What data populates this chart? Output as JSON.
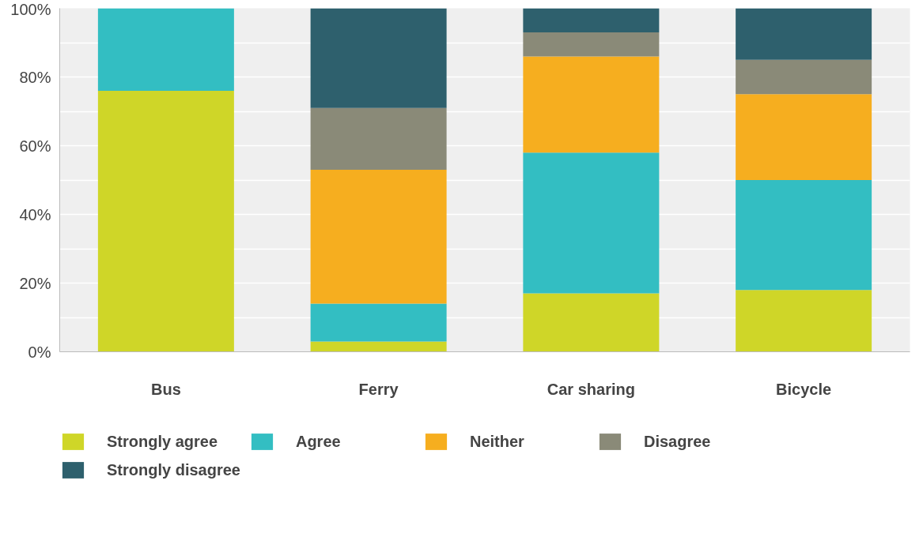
{
  "chart_data": {
    "type": "bar",
    "stacked": true,
    "categories": [
      "Bus",
      "Ferry",
      "Car sharing",
      "Bicycle"
    ],
    "series": [
      {
        "name": "Strongly agree",
        "color": "#cfd628",
        "values": [
          76,
          3,
          17,
          18
        ]
      },
      {
        "name": "Agree",
        "color": "#33bec2",
        "values": [
          24,
          11,
          41,
          32
        ]
      },
      {
        "name": "Neither",
        "color": "#f6ae1f",
        "values": [
          0,
          39,
          28,
          25
        ]
      },
      {
        "name": "Disagree",
        "color": "#8a8a78",
        "values": [
          0,
          18,
          7,
          10
        ]
      },
      {
        "name": "Strongly disagree",
        "color": "#2e606d",
        "values": [
          0,
          29,
          7,
          15
        ]
      }
    ],
    "ylim": [
      0,
      100
    ],
    "yticks": [
      {
        "value": 0,
        "label": "0%"
      },
      {
        "value": 10,
        "label": null
      },
      {
        "value": 20,
        "label": "20%"
      },
      {
        "value": 30,
        "label": null
      },
      {
        "value": 40,
        "label": "40%"
      },
      {
        "value": 50,
        "label": null
      },
      {
        "value": 60,
        "label": "60%"
      },
      {
        "value": 70,
        "label": null
      },
      {
        "value": 80,
        "label": "80%"
      },
      {
        "value": 90,
        "label": null
      },
      {
        "value": 100,
        "label": "100%"
      }
    ],
    "grid": "y",
    "legend": "bottom"
  }
}
